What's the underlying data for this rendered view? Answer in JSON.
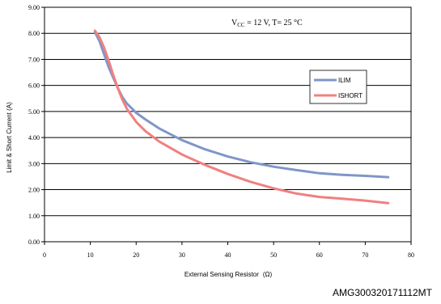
{
  "chart_data": {
    "type": "line",
    "title": "",
    "xlabel": "External Sensing Resistor",
    "xlabel_unit": "(Ω)",
    "ylabel": "Limit & Short Current (A)",
    "xlim": [
      0,
      80
    ],
    "ylim": [
      0,
      9
    ],
    "x_ticks": [
      "0",
      "10",
      "20",
      "30",
      "40",
      "50",
      "60",
      "70",
      "80"
    ],
    "y_ticks": [
      "0.00",
      "1.00",
      "2.00",
      "3.00",
      "4.00",
      "5.00",
      "6.00",
      "7.00",
      "8.00",
      "9.00"
    ],
    "grid": "horizontal",
    "legend_placement": "right",
    "annotation": {
      "v": "V",
      "sub": "CC",
      "rest": " = 12 V, T= 25 °C"
    },
    "series": [
      {
        "name": "ILIM",
        "color": "#8096C8",
        "points": [
          [
            11,
            8.05
          ],
          [
            12,
            7.7
          ],
          [
            13,
            7.2
          ],
          [
            14,
            6.7
          ],
          [
            15,
            6.3
          ],
          [
            16,
            5.9
          ],
          [
            17,
            5.55
          ],
          [
            18,
            5.3
          ],
          [
            20,
            4.95
          ],
          [
            22,
            4.7
          ],
          [
            25,
            4.35
          ],
          [
            30,
            3.9
          ],
          [
            35,
            3.55
          ],
          [
            40,
            3.27
          ],
          [
            45,
            3.05
          ],
          [
            50,
            2.88
          ],
          [
            55,
            2.75
          ],
          [
            60,
            2.63
          ],
          [
            65,
            2.57
          ],
          [
            70,
            2.53
          ],
          [
            75,
            2.48
          ]
        ]
      },
      {
        "name": "ISHORT",
        "color": "#F08080",
        "points": [
          [
            11,
            8.1
          ],
          [
            12,
            7.85
          ],
          [
            13,
            7.45
          ],
          [
            14,
            6.95
          ],
          [
            15,
            6.4
          ],
          [
            16,
            5.9
          ],
          [
            17,
            5.45
          ],
          [
            18,
            5.1
          ],
          [
            20,
            4.6
          ],
          [
            22,
            4.25
          ],
          [
            25,
            3.85
          ],
          [
            30,
            3.35
          ],
          [
            35,
            2.95
          ],
          [
            40,
            2.6
          ],
          [
            45,
            2.3
          ],
          [
            50,
            2.05
          ],
          [
            55,
            1.85
          ],
          [
            60,
            1.72
          ],
          [
            65,
            1.65
          ],
          [
            70,
            1.58
          ],
          [
            75,
            1.48
          ]
        ]
      }
    ]
  },
  "reference_code": "AMG300320171112MT"
}
